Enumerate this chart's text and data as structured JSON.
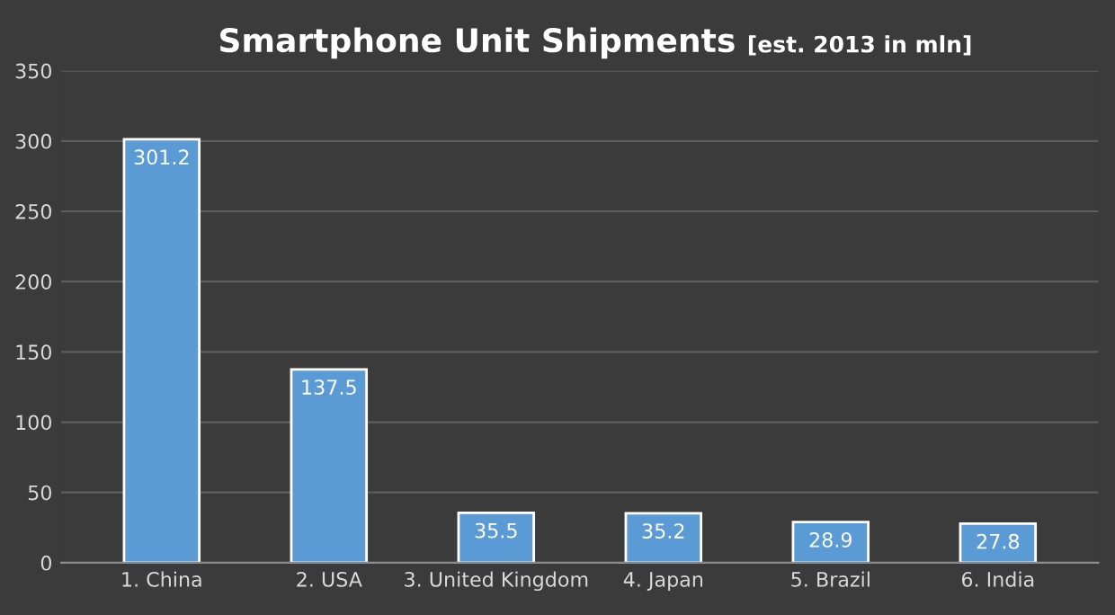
{
  "chart_data": {
    "type": "bar",
    "title": "Smartphone Unit Shipments",
    "subtitle": "[est. 2013 in mln]",
    "categories": [
      "1. China",
      "2. USA",
      "3. United Kingdom",
      "4. Japan",
      "5. Brazil",
      "6. India"
    ],
    "values": [
      301.2,
      137.5,
      35.5,
      35.2,
      28.9,
      27.8
    ],
    "color": "#5b9bd5",
    "ylim": [
      0,
      350
    ],
    "yticks": [
      0,
      50,
      100,
      150,
      200,
      250,
      300,
      350
    ],
    "grid": "y",
    "data_labels": true,
    "legend": false
  }
}
